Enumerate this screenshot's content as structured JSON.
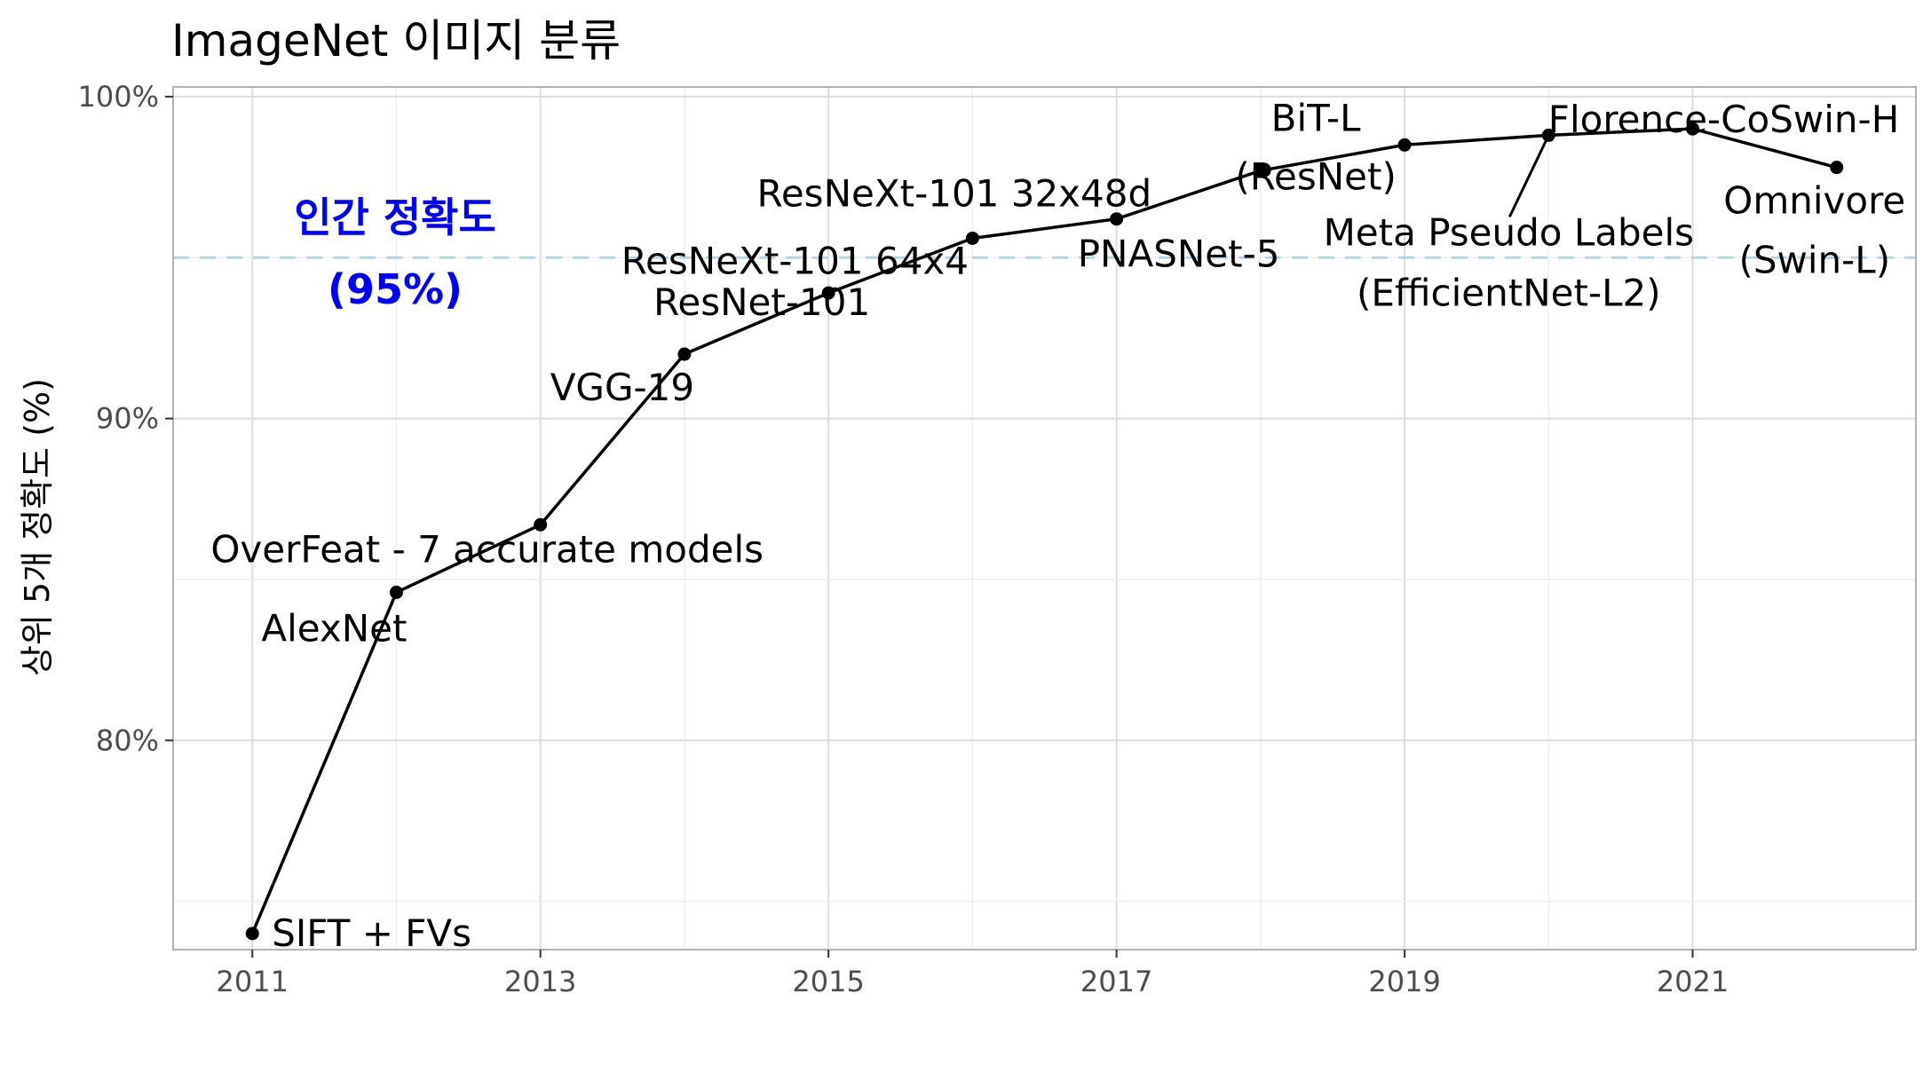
{
  "chart_data": {
    "type": "line",
    "title": "ImageNet 이미지 분류",
    "xlabel": "",
    "ylabel": "상위 5개 정확도 (%)",
    "xlim": [
      2010.45,
      2022.55
    ],
    "ylim": [
      73.5,
      100.3
    ],
    "x_ticks": [
      2011,
      2013,
      2015,
      2017,
      2019,
      2021
    ],
    "x_tick_labels": [
      "2011",
      "2013",
      "2015",
      "2017",
      "2019",
      "2021"
    ],
    "y_ticks": [
      80,
      90,
      100
    ],
    "y_tick_labels": [
      "80%",
      "90%",
      "100%"
    ],
    "grid": true,
    "series": [
      {
        "x": [
          2011,
          2012,
          2013,
          2014,
          2015,
          2016,
          2017,
          2018,
          2019,
          2020,
          2021,
          2022
        ],
        "y": [
          74.0,
          84.6,
          86.7,
          92.0,
          93.9,
          95.6,
          96.2,
          97.7,
          98.5,
          98.8,
          99.0,
          97.8
        ],
        "labels": [
          [
            "SIFT + FVs"
          ],
          [
            "AlexNet"
          ],
          [
            "OverFeat - 7 accurate models"
          ],
          [
            "VGG-19"
          ],
          [
            "ResNet-101"
          ],
          [
            "ResNeXt-101 64x4"
          ],
          [
            "PNASNet-5"
          ],
          [
            "ResNeXt-101 32x48d"
          ],
          [
            "BiT-L",
            "(ResNet)"
          ],
          [
            "Meta Pseudo Labels",
            "(EfficientNet-L2)"
          ],
          [
            "Florence-CoSwin-H"
          ],
          [
            "Omnivore",
            "(Swin-L)"
          ]
        ]
      }
    ],
    "reference_line": {
      "y": 95,
      "label": [
        "인간 정확도",
        "(95%)"
      ],
      "color": "#add8e6",
      "label_color": "#0000ff"
    }
  }
}
